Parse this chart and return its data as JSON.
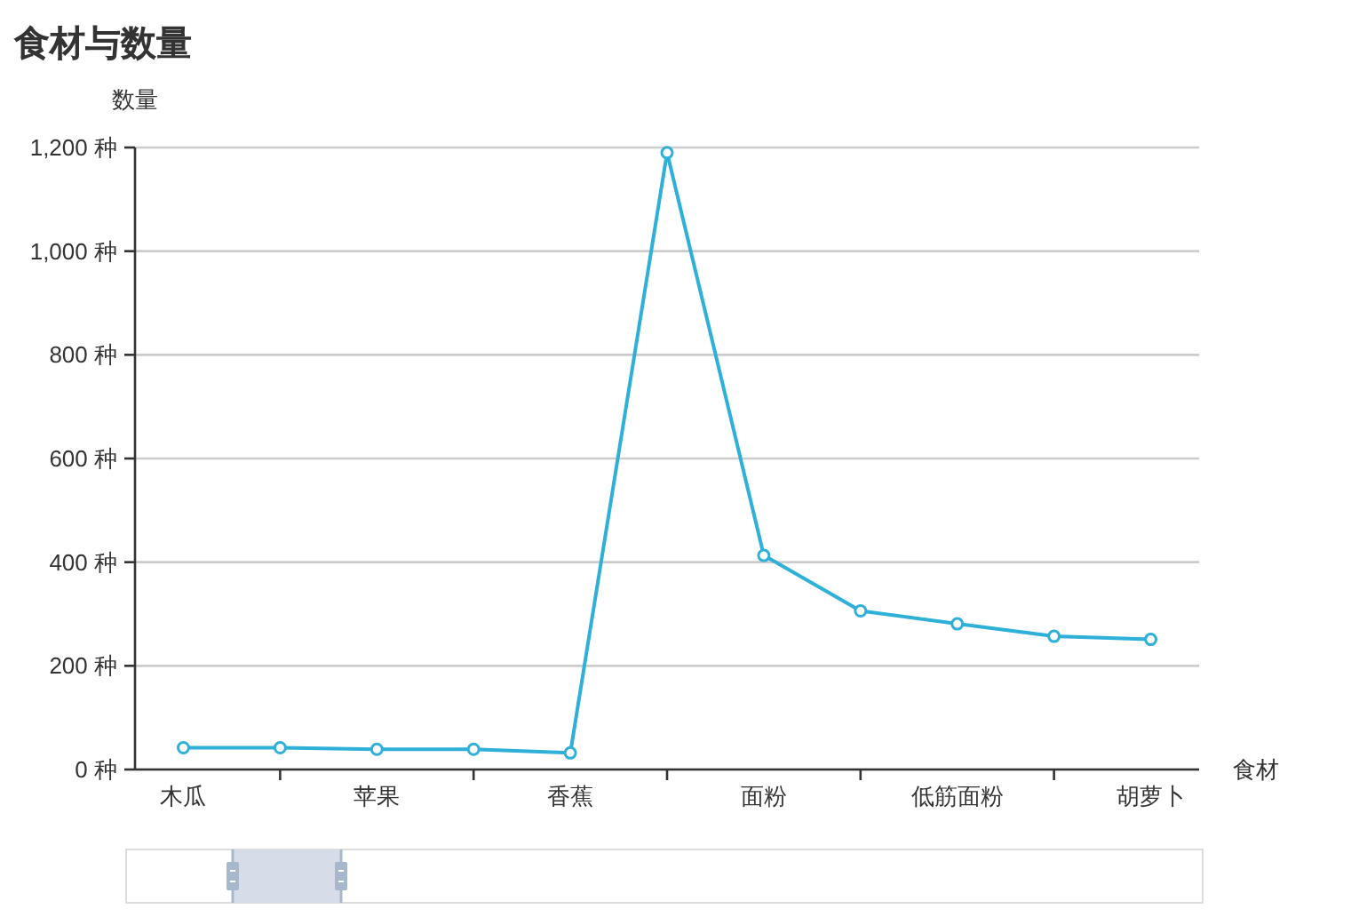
{
  "chart_data": {
    "type": "line",
    "title": "食材与数量",
    "xlabel": "食材",
    "ylabel": "数量",
    "categories": [
      "木瓜",
      null,
      "苹果",
      null,
      "香蕉",
      null,
      "面粉",
      null,
      "低筋面粉",
      null,
      "胡萝卜"
    ],
    "series": [
      {
        "color": "#2eb0d8",
        "values": [
          42,
          42,
          39,
          39,
          32,
          1190,
          413,
          306,
          281,
          257,
          251
        ]
      }
    ],
    "ylim": [
      0,
      1200
    ],
    "yticks": [
      {
        "value": 0,
        "label": "0 种"
      },
      {
        "value": 200,
        "label": "200 种"
      },
      {
        "value": 400,
        "label": "400 种"
      },
      {
        "value": 600,
        "label": "600 种"
      },
      {
        "value": 800,
        "label": "800 种"
      },
      {
        "value": 1000,
        "label": "1,000 种"
      },
      {
        "value": 1200,
        "label": "1,200 种"
      }
    ],
    "grid": "y",
    "marker": "circle",
    "line_style": "solid"
  }
}
